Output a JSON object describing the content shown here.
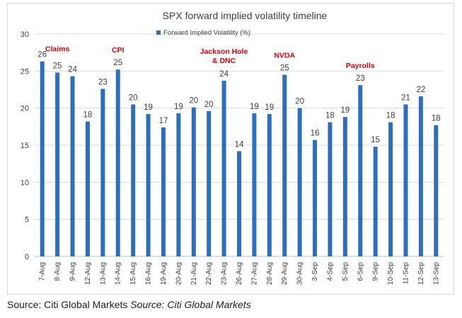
{
  "chart_data": {
    "type": "bar",
    "title": "SPX forward implied volatility timeline",
    "xlabel": "",
    "ylabel": "",
    "ylim": [
      0,
      30
    ],
    "yticks": [
      0,
      5,
      10,
      15,
      20,
      25,
      30
    ],
    "grid": true,
    "legend": {
      "position": "top-left",
      "entries": [
        "Forward Implied Volatility (%)"
      ]
    },
    "categories": [
      "7-Aug",
      "8-Aug",
      "9-Aug",
      "12-Aug",
      "13-Aug",
      "14-Aug",
      "15-Aug",
      "16-Aug",
      "19-Aug",
      "20-Aug",
      "21-Aug",
      "22-Aug",
      "23-Aug",
      "26-Aug",
      "27-Aug",
      "28-Aug",
      "29-Aug",
      "30-Aug",
      "3-Sep",
      "4-Sep",
      "5-Sep",
      "6-Sep",
      "9-Sep",
      "10-Sep",
      "11-Sep",
      "12-Sep",
      "13-Sep"
    ],
    "series": [
      {
        "name": "Forward Implied Volatility (%)",
        "color": "#2e6fbd",
        "values": [
          26.3,
          24.8,
          24.3,
          18.2,
          22.6,
          25.2,
          20.5,
          19.2,
          17.4,
          19.3,
          20.1,
          19.6,
          23.7,
          14.2,
          19.3,
          19.2,
          24.5,
          20.0,
          15.7,
          18.1,
          18.8,
          23.1,
          14.8,
          18.1,
          20.5,
          21.6,
          17.7
        ]
      }
    ],
    "data_labels": [
      "26",
      "25",
      "24",
      "18",
      "23",
      "25",
      "20",
      "19",
      "17",
      "19",
      "20",
      "20",
      "24",
      "14",
      "19",
      "19",
      "25",
      "20",
      "16",
      "18",
      "19",
      "23",
      "15",
      "18",
      "21",
      "22",
      "18"
    ],
    "annotations": [
      {
        "text": "Claims",
        "category": "8-Aug",
        "color": "#e00000"
      },
      {
        "text": "CPI",
        "category": "14-Aug",
        "color": "#e00000"
      },
      {
        "text": "Jackson Hole",
        "text2": "& DNC",
        "category": "23-Aug",
        "color": "#e00000"
      },
      {
        "text": "NVDA",
        "category": "29-Aug",
        "color": "#e00000"
      },
      {
        "text": "Payrolls",
        "category": "6-Sep",
        "color": "#e00000"
      }
    ]
  },
  "source": {
    "regular": "Source: Citi Global Markets ",
    "italic": "Source: Citi Global Markets"
  }
}
